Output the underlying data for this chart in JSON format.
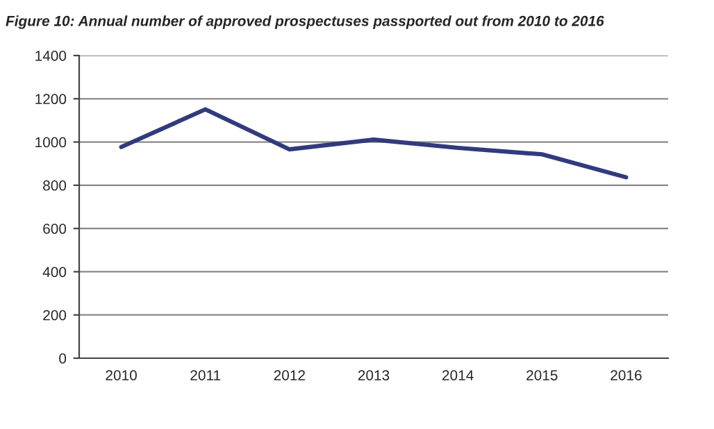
{
  "chart_data": {
    "type": "line",
    "title": "Figure 10: Annual number of approved prospectuses passported out from 2010 to 2016",
    "categories": [
      "2010",
      "2011",
      "2012",
      "2013",
      "2014",
      "2015",
      "2016"
    ],
    "series": [
      {
        "color": "#323a7e",
        "values": [
          977,
          1151,
          966,
          1011,
          973,
          943,
          837
        ]
      }
    ],
    "ylim": [
      0,
      1400
    ],
    "yticks": [
      0,
      200,
      400,
      600,
      800,
      1000,
      1200,
      1400
    ],
    "grid": "y",
    "legend": false,
    "marker": "none",
    "line_style": "solid"
  }
}
